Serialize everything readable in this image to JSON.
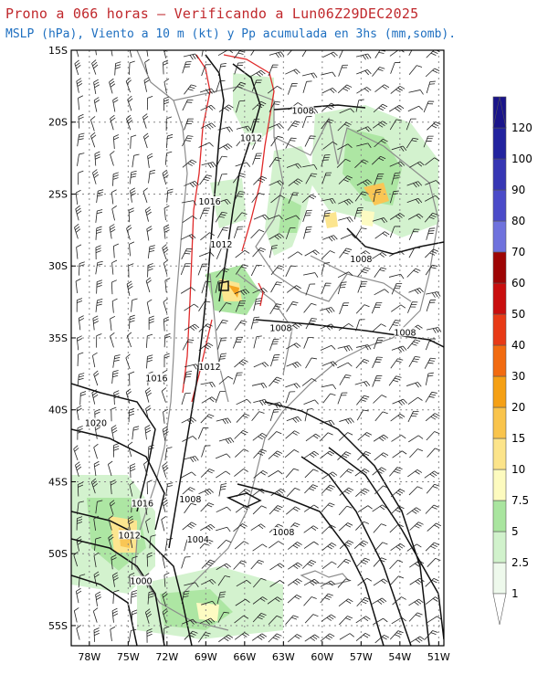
{
  "header": {
    "title": "Prono a 066 horas – Verificando a Lun06Z29DEC2025",
    "subtitle": "MSLP (hPa), Viento a 10 m (kt) y Pp acumulada en 3hs (mm,somb)."
  },
  "map": {
    "lat_labels": [
      "15S",
      "20S",
      "25S",
      "30S",
      "35S",
      "40S",
      "45S",
      "50S",
      "55S"
    ],
    "lon_labels": [
      "78W",
      "75W",
      "72W",
      "69W",
      "66W",
      "63W",
      "60W",
      "57W",
      "54W",
      "51W"
    ],
    "isobar_labels": [
      {
        "text": "1008",
        "lon": -61.5,
        "lat": -19.3
      },
      {
        "text": "1012",
        "lon": -65.5,
        "lat": -21.2
      },
      {
        "text": "1016",
        "lon": -68.7,
        "lat": -25.6
      },
      {
        "text": "1012",
        "lon": -67.8,
        "lat": -28.6
      },
      {
        "text": "1008",
        "lon": -57.0,
        "lat": -29.6
      },
      {
        "text": "1008",
        "lon": -63.2,
        "lat": -34.4
      },
      {
        "text": "1008",
        "lon": -53.6,
        "lat": -34.7
      },
      {
        "text": "1016",
        "lon": -72.8,
        "lat": -37.9
      },
      {
        "text": "1012",
        "lon": -68.7,
        "lat": -37.1
      },
      {
        "text": "1020",
        "lon": -77.5,
        "lat": -41.0
      },
      {
        "text": "1016",
        "lon": -73.9,
        "lat": -46.6
      },
      {
        "text": "1008",
        "lon": -70.2,
        "lat": -46.3
      },
      {
        "text": "1012",
        "lon": -74.9,
        "lat": -48.8
      },
      {
        "text": "1004",
        "lon": -69.6,
        "lat": -49.1
      },
      {
        "text": "1008",
        "lon": -63.0,
        "lat": -48.6
      },
      {
        "text": "1000",
        "lon": -74.0,
        "lat": -52.0
      }
    ]
  },
  "colorbar": {
    "labels": [
      "1",
      "2.5",
      "5",
      "7.5",
      "10",
      "15",
      "20",
      "30",
      "40",
      "50",
      "60",
      "70",
      "80",
      "90",
      "100",
      "120"
    ],
    "colors": [
      "#eef9ec",
      "#d1f2cc",
      "#a9e59f",
      "#fdfbbf",
      "#fce48a",
      "#f9c44c",
      "#f5a015",
      "#f26b10",
      "#e83a16",
      "#c90e0e",
      "#9e0505",
      "#6f72dd",
      "#4b4bc9",
      "#3636b4",
      "#22239f",
      "#1a148a"
    ]
  }
}
